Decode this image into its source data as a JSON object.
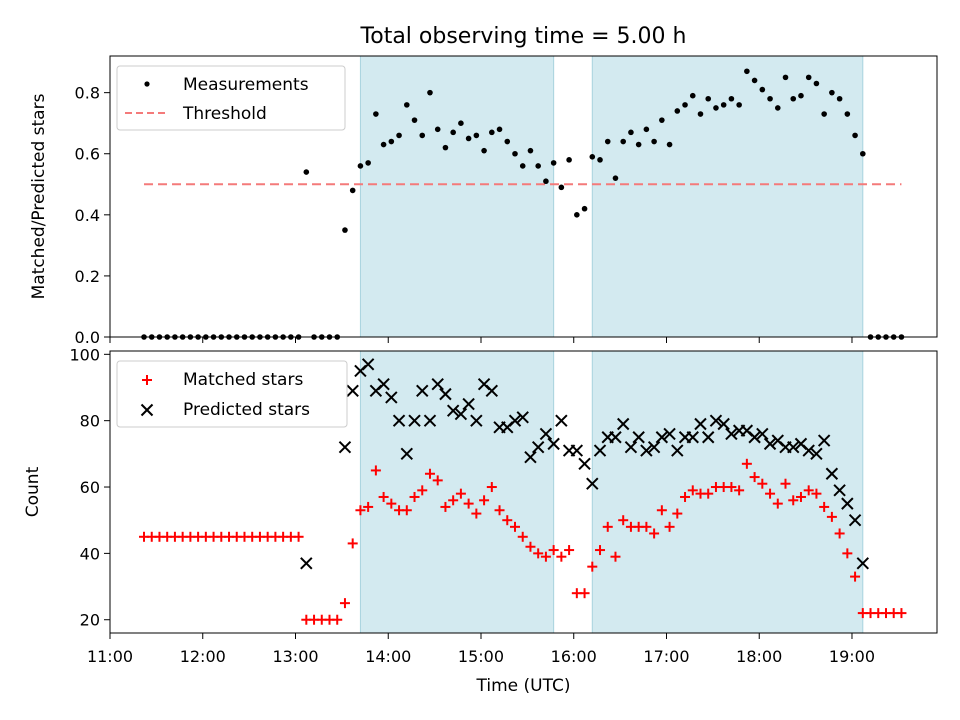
{
  "chart_data": [
    {
      "type": "scatter",
      "title": "Total observing time = 5.00 h",
      "xlabel": "",
      "ylabel": "Matched/Predicted stars",
      "xlim": [
        "11:00",
        "19:55"
      ],
      "ylim": [
        0,
        0.92
      ],
      "yticks": [
        "0.0",
        "0.2",
        "0.4",
        "0.6",
        "0.8"
      ],
      "ytick_values": [
        0,
        0.2,
        0.4,
        0.6,
        0.8
      ],
      "grid": false,
      "legend_position": "top-left",
      "shaded_intervals": [
        [
          "13:42",
          "15:47"
        ],
        [
          "16:12",
          "19:07"
        ]
      ],
      "shade_color": "#d3eaf0",
      "threshold": {
        "name": "Threshold",
        "value": 0.5,
        "x": [
          "11:22",
          "19:32"
        ],
        "color": "#f47a7a"
      },
      "series": [
        {
          "name": "Measurements",
          "marker": "dot",
          "color": "#000000",
          "x": [
            "11:22",
            "11:27",
            "11:32",
            "11:37",
            "11:42",
            "11:47",
            "11:52",
            "11:57",
            "12:02",
            "12:07",
            "12:12",
            "12:17",
            "12:22",
            "12:27",
            "12:32",
            "12:37",
            "12:42",
            "12:47",
            "12:52",
            "12:57",
            "13:02",
            "13:07",
            "13:12",
            "13:17",
            "13:22",
            "13:27",
            "13:32",
            "13:37",
            "13:42",
            "13:47",
            "13:52",
            "13:57",
            "14:02",
            "14:07",
            "14:12",
            "14:17",
            "14:22",
            "14:27",
            "14:32",
            "14:37",
            "14:42",
            "14:47",
            "14:52",
            "14:57",
            "15:02",
            "15:07",
            "15:12",
            "15:17",
            "15:22",
            "15:27",
            "15:32",
            "15:37",
            "15:42",
            "15:47",
            "15:52",
            "15:57",
            "16:02",
            "16:07",
            "16:12",
            "16:17",
            "16:22",
            "16:27",
            "16:32",
            "16:37",
            "16:42",
            "16:47",
            "16:52",
            "16:57",
            "17:02",
            "17:07",
            "17:12",
            "17:17",
            "17:22",
            "17:27",
            "17:32",
            "17:37",
            "17:42",
            "17:47",
            "17:52",
            "17:57",
            "18:02",
            "18:07",
            "18:12",
            "18:17",
            "18:22",
            "18:27",
            "18:32",
            "18:37",
            "18:42",
            "18:47",
            "18:52",
            "18:57",
            "19:02",
            "19:07",
            "19:12",
            "19:17",
            "19:22",
            "19:27",
            "19:32"
          ],
          "y": [
            0,
            0,
            0,
            0,
            0,
            0,
            0,
            0,
            0,
            0,
            0,
            0,
            0,
            0,
            0,
            0,
            0,
            0,
            0,
            0,
            0,
            0.54,
            0,
            0,
            0,
            0,
            0.35,
            0.48,
            0.56,
            0.57,
            0.73,
            0.63,
            0.64,
            0.66,
            0.76,
            0.71,
            0.66,
            0.8,
            0.68,
            0.62,
            0.67,
            0.7,
            0.65,
            0.66,
            0.61,
            0.67,
            0.68,
            0.64,
            0.6,
            0.56,
            0.61,
            0.56,
            0.51,
            0.57,
            0.49,
            0.58,
            0.4,
            0.42,
            0.59,
            0.58,
            0.64,
            0.52,
            0.64,
            0.67,
            0.63,
            0.68,
            0.64,
            0.71,
            0.63,
            0.74,
            0.76,
            0.79,
            0.73,
            0.78,
            0.75,
            0.76,
            0.78,
            0.76,
            0.87,
            0.84,
            0.81,
            0.78,
            0.75,
            0.85,
            0.78,
            0.79,
            0.85,
            0.83,
            0.73,
            0.8,
            0.78,
            0.73,
            0.66,
            0.6,
            0,
            0,
            0,
            0,
            0
          ]
        }
      ]
    },
    {
      "type": "scatter",
      "title": "",
      "xlabel": "Time (UTC)",
      "ylabel": "Count",
      "xlim": [
        "11:00",
        "19:55"
      ],
      "ylim": [
        16,
        101
      ],
      "yticks": [
        "20",
        "40",
        "60",
        "80",
        "100"
      ],
      "ytick_values": [
        20,
        40,
        60,
        80,
        100
      ],
      "xticks": [
        "11:00",
        "12:00",
        "13:00",
        "14:00",
        "15:00",
        "16:00",
        "17:00",
        "18:00",
        "19:00"
      ],
      "grid": false,
      "legend_position": "top-left",
      "shaded_intervals": [
        [
          "13:42",
          "15:47"
        ],
        [
          "16:12",
          "19:07"
        ]
      ],
      "shade_color": "#d3eaf0",
      "series": [
        {
          "name": "Matched stars",
          "marker": "plus",
          "color": "#ff0000",
          "x": [
            "11:22",
            "11:27",
            "11:32",
            "11:37",
            "11:42",
            "11:47",
            "11:52",
            "11:57",
            "12:02",
            "12:07",
            "12:12",
            "12:17",
            "12:22",
            "12:27",
            "12:32",
            "12:37",
            "12:42",
            "12:47",
            "12:52",
            "12:57",
            "13:02",
            "13:07",
            "13:12",
            "13:17",
            "13:22",
            "13:27",
            "13:32",
            "13:37",
            "13:42",
            "13:47",
            "13:52",
            "13:57",
            "14:02",
            "14:07",
            "14:12",
            "14:17",
            "14:22",
            "14:27",
            "14:32",
            "14:37",
            "14:42",
            "14:47",
            "14:52",
            "14:57",
            "15:02",
            "15:07",
            "15:12",
            "15:17",
            "15:22",
            "15:27",
            "15:32",
            "15:37",
            "15:42",
            "15:47",
            "15:52",
            "15:57",
            "16:02",
            "16:07",
            "16:12",
            "16:17",
            "16:22",
            "16:27",
            "16:32",
            "16:37",
            "16:42",
            "16:47",
            "16:52",
            "16:57",
            "17:02",
            "17:07",
            "17:12",
            "17:17",
            "17:22",
            "17:27",
            "17:32",
            "17:37",
            "17:42",
            "17:47",
            "17:52",
            "17:57",
            "18:02",
            "18:07",
            "18:12",
            "18:17",
            "18:22",
            "18:27",
            "18:32",
            "18:37",
            "18:42",
            "18:47",
            "18:52",
            "18:57",
            "19:02",
            "19:07",
            "19:12",
            "19:17",
            "19:22",
            "19:27",
            "19:32"
          ],
          "y": [
            45,
            45,
            45,
            45,
            45,
            45,
            45,
            45,
            45,
            45,
            45,
            45,
            45,
            45,
            45,
            45,
            45,
            45,
            45,
            45,
            45,
            20,
            20,
            20,
            20,
            20,
            25,
            43,
            53,
            54,
            65,
            57,
            55,
            53,
            53,
            57,
            59,
            64,
            62,
            54,
            56,
            58,
            55,
            52,
            56,
            60,
            53,
            50,
            48,
            45,
            42,
            40,
            39,
            41,
            39,
            41,
            28,
            28,
            36,
            41,
            48,
            39,
            50,
            48,
            48,
            48,
            46,
            53,
            48,
            52,
            57,
            59,
            58,
            58,
            60,
            60,
            60,
            59,
            67,
            63,
            61,
            58,
            55,
            61,
            56,
            57,
            59,
            58,
            54,
            51,
            46,
            40,
            33,
            22,
            22,
            22,
            22,
            22,
            22
          ]
        },
        {
          "name": "Predicted stars",
          "marker": "x",
          "color": "#000000",
          "x": [
            "13:07",
            "13:32",
            "13:37",
            "13:42",
            "13:47",
            "13:52",
            "13:57",
            "14:02",
            "14:07",
            "14:12",
            "14:17",
            "14:22",
            "14:27",
            "14:32",
            "14:37",
            "14:42",
            "14:47",
            "14:52",
            "14:57",
            "15:02",
            "15:07",
            "15:12",
            "15:17",
            "15:22",
            "15:27",
            "15:32",
            "15:37",
            "15:42",
            "15:47",
            "15:52",
            "15:57",
            "16:02",
            "16:07",
            "16:12",
            "16:17",
            "16:22",
            "16:27",
            "16:32",
            "16:37",
            "16:42",
            "16:47",
            "16:52",
            "16:57",
            "17:02",
            "17:07",
            "17:12",
            "17:17",
            "17:22",
            "17:27",
            "17:32",
            "17:37",
            "17:42",
            "17:47",
            "17:52",
            "17:57",
            "18:02",
            "18:07",
            "18:12",
            "18:17",
            "18:22",
            "18:27",
            "18:32",
            "18:37",
            "18:42",
            "18:47",
            "18:52",
            "18:57",
            "19:02",
            "19:07"
          ],
          "y": [
            37,
            72,
            89,
            95,
            97,
            89,
            91,
            87,
            80,
            70,
            80,
            89,
            80,
            91,
            88,
            83,
            82,
            85,
            80,
            91,
            89,
            78,
            78,
            80,
            81,
            69,
            72,
            76,
            73,
            80,
            71,
            71,
            67,
            61,
            71,
            75,
            75,
            79,
            72,
            75,
            71,
            72,
            75,
            76,
            71,
            75,
            75,
            79,
            75,
            80,
            79,
            76,
            77,
            77,
            75,
            76,
            73,
            74,
            72,
            72,
            73,
            71,
            70,
            74,
            64,
            59,
            55,
            50,
            37
          ]
        }
      ]
    }
  ]
}
